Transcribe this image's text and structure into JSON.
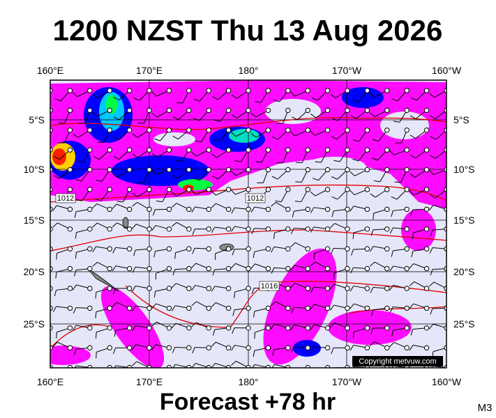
{
  "title": "1200 NZST Thu 13 Aug 2026",
  "longitude_labels": [
    "160°E",
    "170°E",
    "180°",
    "170°W",
    "160°W"
  ],
  "latitude_labels": [
    "5°S",
    "10°S",
    "15°S",
    "20°S",
    "25°S"
  ],
  "isobar_labels": [
    "1012",
    "1012",
    "1016"
  ],
  "copyright": "Copyright metvuw.com",
  "footer": "Forecast +78 hr",
  "code": "M3"
}
